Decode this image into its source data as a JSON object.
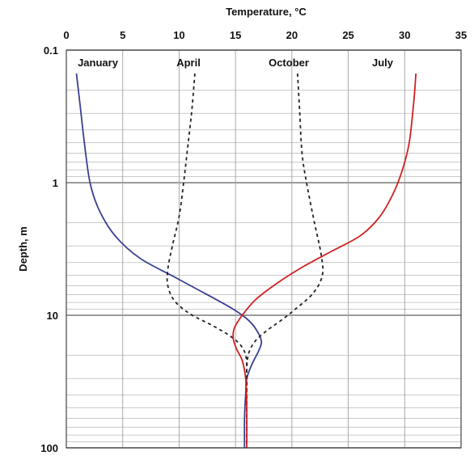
{
  "chart_data": {
    "type": "line",
    "title": "",
    "xlabel": "Temperature, °C",
    "ylabel": "Depth, m",
    "xlim": [
      0,
      35
    ],
    "ylim": [
      0.1,
      100
    ],
    "y_scale": "log",
    "y_inverted": true,
    "x_axis_position": "top",
    "x_ticks": [
      "0",
      "5",
      "10",
      "15",
      "20",
      "25",
      "30",
      "35"
    ],
    "y_ticks": [
      "0.1",
      "1",
      "10",
      "100"
    ],
    "grid": true,
    "series": [
      {
        "name": "January",
        "color": "#3a3f8f",
        "style": "solid",
        "points": [
          [
            0.9,
            0.15
          ],
          [
            1.2,
            0.25
          ],
          [
            1.6,
            0.5
          ],
          [
            2.1,
            1.0
          ],
          [
            2.9,
            1.6
          ],
          [
            4.3,
            2.5
          ],
          [
            6.5,
            3.7
          ],
          [
            9.5,
            5.1
          ],
          [
            12.5,
            7.0
          ],
          [
            14.8,
            9.0
          ],
          [
            16.2,
            11.0
          ],
          [
            17.0,
            13.5
          ],
          [
            17.3,
            16.0
          ],
          [
            17.0,
            19.0
          ],
          [
            16.5,
            23.0
          ],
          [
            16.0,
            30.0
          ],
          [
            15.9,
            40.0
          ],
          [
            15.8,
            60.0
          ],
          [
            15.8,
            100.0
          ]
        ]
      },
      {
        "name": "April",
        "color": "#222222",
        "style": "dashed",
        "points": [
          [
            11.4,
            0.15
          ],
          [
            11.1,
            0.3
          ],
          [
            10.7,
            0.6
          ],
          [
            10.4,
            1.0
          ],
          [
            10.0,
            1.8
          ],
          [
            9.4,
            3.0
          ],
          [
            9.0,
            4.5
          ],
          [
            9.0,
            6.0
          ],
          [
            9.6,
            7.8
          ],
          [
            11.0,
            9.8
          ],
          [
            13.0,
            12.0
          ],
          [
            14.6,
            14.5
          ],
          [
            15.5,
            17.0
          ],
          [
            15.9,
            20.0
          ],
          [
            16.0,
            25.0
          ],
          [
            16.0,
            40.0
          ],
          [
            16.0,
            100.0
          ]
        ]
      },
      {
        "name": "October",
        "color": "#222222",
        "style": "dashed",
        "points": [
          [
            20.5,
            0.15
          ],
          [
            20.7,
            0.3
          ],
          [
            20.9,
            0.6
          ],
          [
            21.3,
            1.0
          ],
          [
            22.0,
            2.0
          ],
          [
            22.6,
            3.5
          ],
          [
            22.7,
            5.0
          ],
          [
            21.9,
            6.8
          ],
          [
            20.3,
            9.0
          ],
          [
            19.0,
            11.0
          ],
          [
            17.8,
            13.0
          ],
          [
            16.8,
            15.5
          ],
          [
            16.2,
            19.0
          ],
          [
            16.0,
            25.0
          ],
          [
            16.0,
            40.0
          ],
          [
            16.0,
            100.0
          ]
        ]
      },
      {
        "name": "July",
        "color": "#d02020",
        "style": "solid",
        "points": [
          [
            31.0,
            0.15
          ],
          [
            30.8,
            0.25
          ],
          [
            30.4,
            0.5
          ],
          [
            29.8,
            0.8
          ],
          [
            29.0,
            1.2
          ],
          [
            27.8,
            1.8
          ],
          [
            26.1,
            2.5
          ],
          [
            23.5,
            3.3
          ],
          [
            21.0,
            4.3
          ],
          [
            18.6,
            5.8
          ],
          [
            16.8,
            7.6
          ],
          [
            15.6,
            10.0
          ],
          [
            14.9,
            12.5
          ],
          [
            14.8,
            15.0
          ],
          [
            15.1,
            18.0
          ],
          [
            15.6,
            22.0
          ],
          [
            15.9,
            30.0
          ],
          [
            16.0,
            50.0
          ],
          [
            16.0,
            100.0
          ]
        ]
      }
    ]
  }
}
